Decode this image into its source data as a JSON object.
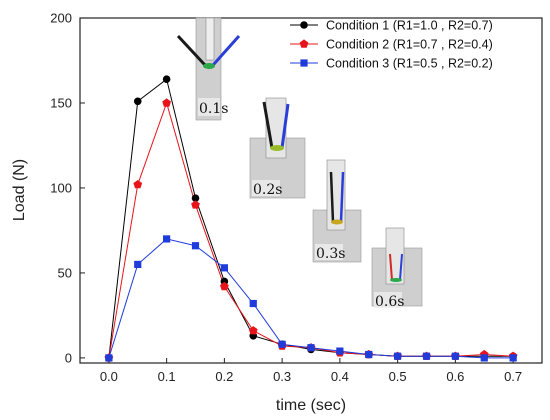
{
  "chart_data": {
    "type": "line",
    "title": "",
    "xlabel": "time (sec)",
    "ylabel": "Load (N)",
    "xlim": [
      -0.05,
      0.75
    ],
    "ylim": [
      -3,
      200
    ],
    "x_ticks": [
      "0.0",
      "0.1",
      "0.2",
      "0.3",
      "0.4",
      "0.5",
      "0.6",
      "0.7"
    ],
    "y_ticks": [
      "0",
      "50",
      "100",
      "150",
      "200"
    ],
    "grid": false,
    "legend_position": "top-right",
    "x": [
      0.0,
      0.05,
      0.1,
      0.15,
      0.2,
      0.25,
      0.3,
      0.35,
      0.4,
      0.45,
      0.5,
      0.55,
      0.6,
      0.65,
      0.7
    ],
    "series": [
      {
        "name": "Condition 1 (R1=1.0 , R2=0.7)",
        "color": "#000000",
        "marker": "circle",
        "values": [
          0,
          151,
          164,
          94,
          45,
          13,
          8,
          5,
          3,
          2,
          1,
          1,
          1,
          1,
          1
        ]
      },
      {
        "name": "Condition 2 (R1=0.7 , R2=0.4)",
        "color": "#e8141b",
        "marker": "pentagon",
        "values": [
          0,
          102,
          150,
          90,
          42,
          16,
          7,
          6,
          3,
          2,
          1,
          1,
          1,
          2,
          1
        ]
      },
      {
        "name": "Condition 3 (R1=0.5 , R2=0.2)",
        "color": "#1f3bdc",
        "marker": "square",
        "values": [
          0,
          55,
          70,
          66,
          53,
          32,
          8,
          6,
          4,
          2,
          1,
          1,
          1,
          0,
          0
        ]
      }
    ],
    "annotations": [
      "0.1s",
      "0.2s",
      "0.3s",
      "0.6s"
    ]
  }
}
